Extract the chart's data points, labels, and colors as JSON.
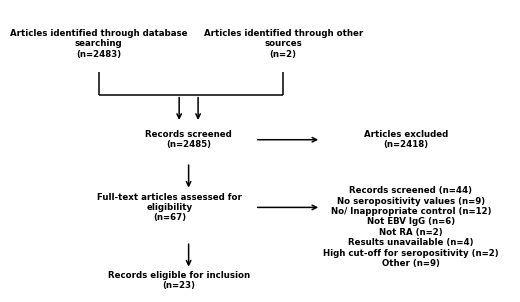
{
  "bg_color": "#ffffff",
  "box1_text": "Articles identified through database\nsearching\n(n=2483)",
  "box2_text": "Articles identified through other\nsources\n(n=2)",
  "box3_text": "Records screened\n(n=2485)",
  "box4_text": "Articles excluded\n(n=2418)",
  "box5_text": "Full-text articles assessed for\neligibility\n(n=67)",
  "box6_text": "Records screened (n=44)\nNo seropositivity values (n=9)\nNo/ Inappropriate control (n=12)\nNot EBV IgG (n=6)\nNot RA (n=2)\nResults unavailable (n=4)\nHigh cut-off for seropositivity (n=2)\nOther (n=9)",
  "box7_text": "Records eligible for inclusion\n(n=23)",
  "font_size": 6.2
}
